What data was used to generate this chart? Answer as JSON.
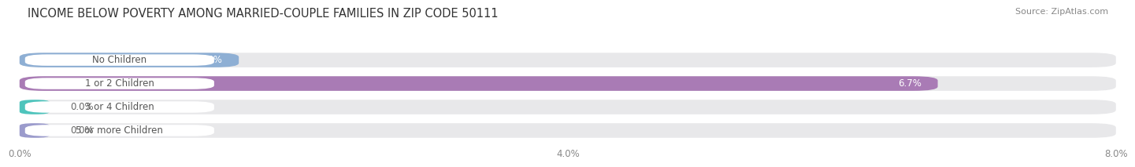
{
  "title": "INCOME BELOW POVERTY AMONG MARRIED-COUPLE FAMILIES IN ZIP CODE 50111",
  "source": "Source: ZipAtlas.com",
  "categories": [
    "No Children",
    "1 or 2 Children",
    "3 or 4 Children",
    "5 or more Children"
  ],
  "values": [
    1.6,
    6.7,
    0.0,
    0.0
  ],
  "bar_colors": [
    "#8eafd4",
    "#a97bb5",
    "#4ec4bc",
    "#9b9bcc"
  ],
  "xlim_max": 8.0,
  "xticks": [
    0.0,
    4.0,
    8.0
  ],
  "xtick_labels": [
    "0.0%",
    "4.0%",
    "8.0%"
  ],
  "background_color": "#ffffff",
  "bar_bg_color": "#e8e8ea",
  "bar_height": 0.62,
  "label_box_color": "#ffffff",
  "label_text_color": "#555555",
  "value_text_color_dark": "#666666",
  "value_text_color_light": "#ffffff",
  "title_fontsize": 10.5,
  "label_fontsize": 8.5,
  "value_fontsize": 8.5,
  "source_fontsize": 8,
  "grid_color": "#ffffff",
  "title_color": "#333333",
  "source_color": "#888888"
}
